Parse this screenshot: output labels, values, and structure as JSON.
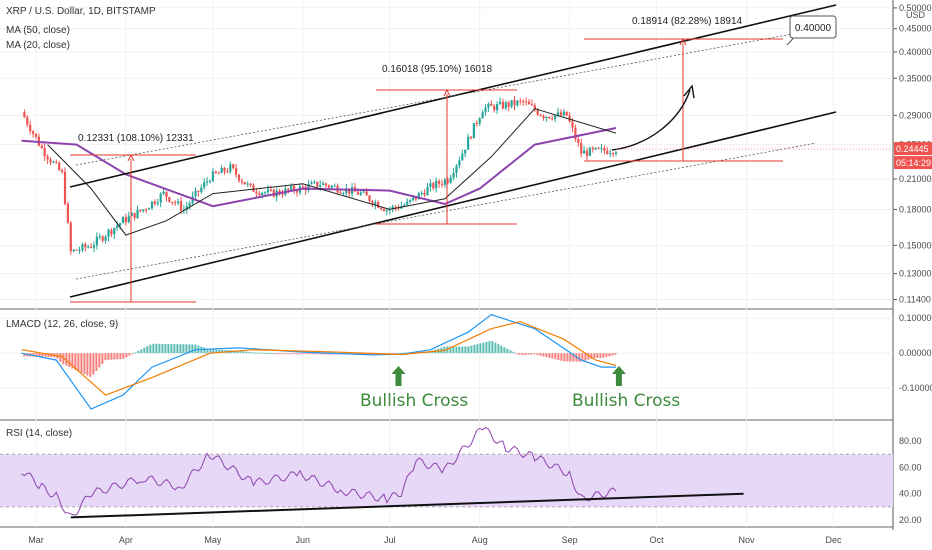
{
  "chart_data": {
    "type": "candlestick",
    "symbol_title": "XRP / U.S. Dollar, 1D, BITSTAMP",
    "currency": "USD",
    "indicators": [
      "MA (50, close)",
      "MA (20, close)"
    ],
    "price_axis": {
      "scale": "log",
      "range": [
        0.112,
        0.51
      ],
      "ticks": [
        "0.50000",
        "0.45000",
        "0.40000",
        "0.35000",
        "0.29000",
        "0.25000",
        "0.21000",
        "0.18000",
        "0.15000",
        "0.13000",
        "0.11400"
      ]
    },
    "x_axis": {
      "labels": [
        "Mar",
        "Apr",
        "May",
        "Jun",
        "Jul",
        "Aug",
        "Sep",
        "Oct",
        "Nov",
        "Dec"
      ],
      "label_dates": [
        "2020-03-01",
        "2020-04-01",
        "2020-05-01",
        "2020-06-01",
        "2020-07-01",
        "2020-08-01",
        "2020-09-01",
        "2020-10-01",
        "2020-11-01",
        "2020-12-01"
      ]
    },
    "last_price": {
      "value": "0.24445",
      "countdown": "05:14:29",
      "color": "#ef5350"
    },
    "target_label": "0.40000",
    "annotations": [
      {
        "text": "0.12331 (108.10%) 12331"
      },
      {
        "text": "0.16018 (95.10%) 16018"
      },
      {
        "text": "0.18914 (82.28%) 18914"
      }
    ],
    "price_series": [
      {
        "date": "2020-02-25",
        "close": 0.295
      },
      {
        "date": "2020-03-03",
        "close": 0.245
      },
      {
        "date": "2020-03-10",
        "close": 0.215
      },
      {
        "date": "2020-03-13",
        "close": 0.145
      },
      {
        "date": "2020-03-20",
        "close": 0.15
      },
      {
        "date": "2020-03-31",
        "close": 0.17
      },
      {
        "date": "2020-04-07",
        "close": 0.18
      },
      {
        "date": "2020-04-14",
        "close": 0.195
      },
      {
        "date": "2020-04-21",
        "close": 0.18
      },
      {
        "date": "2020-04-30",
        "close": 0.212
      },
      {
        "date": "2020-05-07",
        "close": 0.222
      },
      {
        "date": "2020-05-14",
        "close": 0.2
      },
      {
        "date": "2020-05-21",
        "close": 0.195
      },
      {
        "date": "2020-05-31",
        "close": 0.2
      },
      {
        "date": "2020-06-07",
        "close": 0.205
      },
      {
        "date": "2020-06-14",
        "close": 0.2
      },
      {
        "date": "2020-06-21",
        "close": 0.195
      },
      {
        "date": "2020-06-30",
        "close": 0.18
      },
      {
        "date": "2020-07-07",
        "close": 0.185
      },
      {
        "date": "2020-07-14",
        "close": 0.2
      },
      {
        "date": "2020-07-21",
        "close": 0.21
      },
      {
        "date": "2020-07-26",
        "close": 0.24
      },
      {
        "date": "2020-08-02",
        "close": 0.3
      },
      {
        "date": "2020-08-09",
        "close": 0.305
      },
      {
        "date": "2020-08-16",
        "close": 0.31
      },
      {
        "date": "2020-08-23",
        "close": 0.29
      },
      {
        "date": "2020-08-31",
        "close": 0.29
      },
      {
        "date": "2020-09-05",
        "close": 0.24
      },
      {
        "date": "2020-09-12",
        "close": 0.242
      },
      {
        "date": "2020-09-17",
        "close": 0.2444
      }
    ],
    "ma_50": [
      {
        "date": "2020-02-25",
        "value": 0.255
      },
      {
        "date": "2020-03-15",
        "value": 0.25
      },
      {
        "date": "2020-04-01",
        "value": 0.215
      },
      {
        "date": "2020-05-01",
        "value": 0.183
      },
      {
        "date": "2020-06-01",
        "value": 0.2
      },
      {
        "date": "2020-07-01",
        "value": 0.198
      },
      {
        "date": "2020-07-20",
        "value": 0.185
      },
      {
        "date": "2020-08-01",
        "value": 0.2
      },
      {
        "date": "2020-08-20",
        "value": 0.25
      },
      {
        "date": "2020-09-17",
        "value": 0.272
      }
    ],
    "ma_20": [
      {
        "date": "2020-03-05",
        "value": 0.25
      },
      {
        "date": "2020-03-20",
        "value": 0.2
      },
      {
        "date": "2020-04-01",
        "value": 0.158
      },
      {
        "date": "2020-04-15",
        "value": 0.17
      },
      {
        "date": "2020-05-01",
        "value": 0.195
      },
      {
        "date": "2020-06-01",
        "value": 0.205
      },
      {
        "date": "2020-07-01",
        "value": 0.18
      },
      {
        "date": "2020-07-20",
        "value": 0.19
      },
      {
        "date": "2020-08-05",
        "value": 0.235
      },
      {
        "date": "2020-08-20",
        "value": 0.3
      },
      {
        "date": "2020-09-17",
        "value": 0.265
      }
    ],
    "lmacd": {
      "title": "LMACD (12, 26, close, 9)",
      "ticks": [
        "0.10000",
        "0.00000",
        "-0.10000"
      ],
      "range": [
        -0.18,
        0.115
      ],
      "note_labels": [
        "Bullish Cross",
        "Bullish Cross"
      ]
    },
    "rsi": {
      "title": "RSI (14, close)",
      "ticks": [
        "80.00",
        "60.00",
        "40.00",
        "20.00"
      ],
      "range": [
        17,
        93
      ],
      "band": [
        30,
        70
      ],
      "series": [
        {
          "date": "2020-02-25",
          "value": 58
        },
        {
          "date": "2020-03-03",
          "value": 45
        },
        {
          "date": "2020-03-08",
          "value": 38
        },
        {
          "date": "2020-03-13",
          "value": 22
        },
        {
          "date": "2020-03-20",
          "value": 40
        },
        {
          "date": "2020-04-07",
          "value": 52
        },
        {
          "date": "2020-04-20",
          "value": 45
        },
        {
          "date": "2020-04-30",
          "value": 70
        },
        {
          "date": "2020-05-15",
          "value": 48
        },
        {
          "date": "2020-05-31",
          "value": 55
        },
        {
          "date": "2020-06-15",
          "value": 42
        },
        {
          "date": "2020-06-30",
          "value": 36
        },
        {
          "date": "2020-07-05",
          "value": 40
        },
        {
          "date": "2020-07-10",
          "value": 65
        },
        {
          "date": "2020-07-20",
          "value": 58
        },
        {
          "date": "2020-08-02",
          "value": 90
        },
        {
          "date": "2020-08-10",
          "value": 75
        },
        {
          "date": "2020-08-20",
          "value": 68
        },
        {
          "date": "2020-09-01",
          "value": 55
        },
        {
          "date": "2020-09-05",
          "value": 36
        },
        {
          "date": "2020-09-17",
          "value": 42
        }
      ]
    },
    "colors": {
      "up": "#26a69a",
      "down": "#ef5350",
      "ma50": "#8e44ad",
      "ma20": "#222222",
      "rsi": "#8e44ad",
      "rsi_band": "#e7d8f7",
      "macd": "#2196f3",
      "signal": "#f57c00",
      "bullish": "#3e8a3e"
    }
  }
}
